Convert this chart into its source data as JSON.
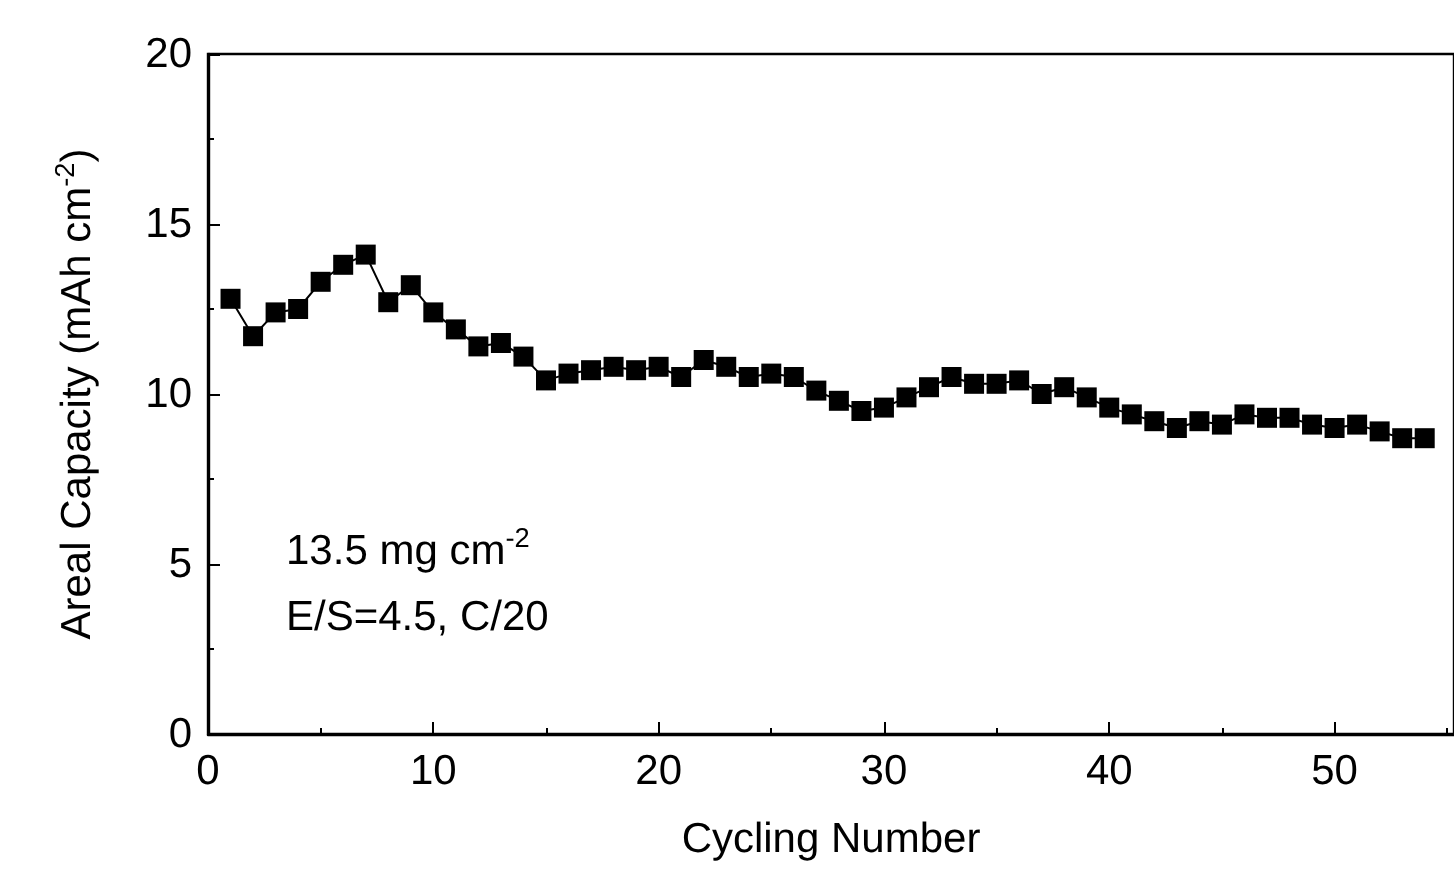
{
  "chart_data": {
    "type": "line",
    "xlabel": "Cycling Number",
    "ylabel": "Areal Capacity (mAh cm$^{-2}$)",
    "x": [
      1,
      2,
      3,
      4,
      5,
      6,
      7,
      8,
      9,
      10,
      11,
      12,
      13,
      14,
      15,
      16,
      17,
      18,
      19,
      20,
      21,
      22,
      23,
      24,
      25,
      26,
      27,
      28,
      29,
      30,
      31,
      32,
      33,
      34,
      35,
      36,
      37,
      38,
      39,
      40,
      41,
      42,
      43,
      44,
      45,
      46,
      47,
      48,
      49,
      50,
      51,
      52,
      53,
      54
    ],
    "series": [
      {
        "color": "#000000",
        "values": [
          12.8,
          11.7,
          12.4,
          12.5,
          13.3,
          13.8,
          14.1,
          12.7,
          13.2,
          12.4,
          11.9,
          11.4,
          11.5,
          11.1,
          10.4,
          10.6,
          10.7,
          10.8,
          10.7,
          10.8,
          10.5,
          11.0,
          10.8,
          10.5,
          10.6,
          10.5,
          10.1,
          9.8,
          9.5,
          9.6,
          9.9,
          10.2,
          10.5,
          10.3,
          10.3,
          10.4,
          10.0,
          10.2,
          9.9,
          9.6,
          9.4,
          9.2,
          9.0,
          9.2,
          9.1,
          9.4,
          9.3,
          9.3,
          9.1,
          9.0,
          9.1,
          8.9,
          8.7,
          8.7
        ]
      }
    ],
    "marker": "square",
    "line_style": "solid",
    "xlim": [
      0,
      55.3
    ],
    "xticks": [
      0,
      10,
      20,
      30,
      40,
      50
    ],
    "ylim": [
      0,
      20
    ],
    "yticks": [
      0,
      5,
      10,
      15,
      20
    ],
    "annotations": [
      "13.5 mg cm$^{-2}$",
      "E/S=4.5, C/20"
    ]
  }
}
